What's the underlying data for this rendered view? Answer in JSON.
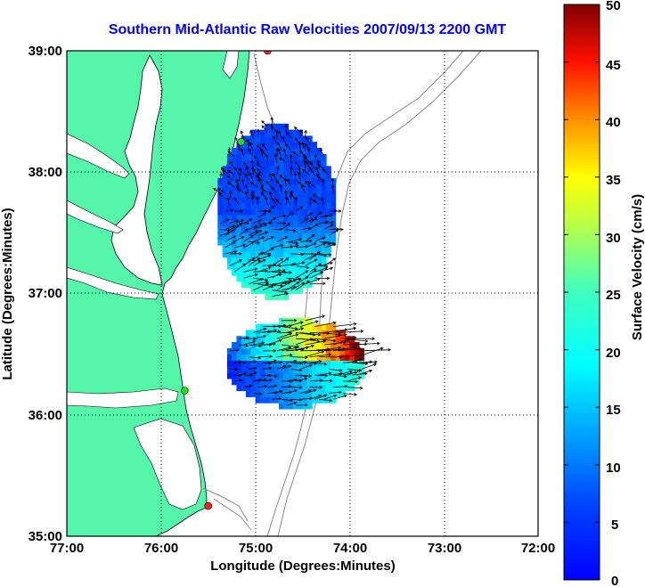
{
  "title": "Southern Mid-Atlantic Raw Velocities 2007/09/13 2200 GMT",
  "xlabel": "Longitude (Degrees:Minutes)",
  "ylabel": "Latitude (Degrees:Minutes)",
  "xticks": [
    "77:00",
    "76:00",
    "75:00",
    "74:00",
    "73:00",
    "72:00"
  ],
  "yticks": [
    "39:00",
    "38:00",
    "37:00",
    "36:00",
    "35:00"
  ],
  "colorbar": {
    "label": "Surface Velocity (cm/s)",
    "ticks": [
      "50",
      "45",
      "40",
      "35",
      "30",
      "25",
      "20",
      "15",
      "10",
      "5",
      "0"
    ],
    "range": [
      0,
      50
    ],
    "colormap": "jet"
  },
  "colors": {
    "land": "#55f5aa",
    "water": "#ffffff",
    "title": "#0000ff",
    "bathymetry": "#888888",
    "station_red": "#ff2020",
    "station_green": "#22dd22"
  },
  "chart_data": {
    "type": "map",
    "xlim": [
      -77,
      -72
    ],
    "ylim": [
      35,
      39
    ],
    "grid": true,
    "stations": [
      {
        "lon": -74.87,
        "lat": 39.0,
        "color": "red"
      },
      {
        "lon": -75.15,
        "lat": 38.25,
        "color": "green"
      },
      {
        "lon": -75.75,
        "lat": 36.2,
        "color": "green"
      },
      {
        "lon": -75.5,
        "lat": 35.25,
        "color": "red"
      }
    ],
    "fields": [
      {
        "region": "north",
        "lon_range": [
          -75.4,
          -74.2
        ],
        "lat_range": [
          36.95,
          38.35
        ],
        "speed_range_cm_s": [
          5,
          25
        ]
      },
      {
        "region": "south",
        "lon_range": [
          -75.3,
          -73.9
        ],
        "lat_range": [
          36.05,
          36.75
        ],
        "speed_range_cm_s": [
          8,
          50
        ]
      }
    ]
  }
}
